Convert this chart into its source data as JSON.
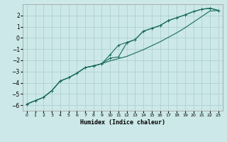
{
  "xlabel": "Humidex (Indice chaleur)",
  "background_color": "#cce8e8",
  "grid_color": "#aacccc",
  "line_color": "#1a6b5e",
  "x_data": [
    0,
    1,
    2,
    3,
    4,
    5,
    6,
    7,
    8,
    9,
    10,
    11,
    12,
    13,
    14,
    15,
    16,
    17,
    18,
    19,
    20,
    21,
    22,
    23
  ],
  "line1_y": [
    -5.9,
    -5.6,
    -5.3,
    -4.7,
    -3.85,
    -3.55,
    -3.15,
    -2.65,
    -2.5,
    -2.3,
    -1.8,
    -1.7,
    -0.45,
    -0.15,
    0.6,
    0.85,
    1.1,
    1.55,
    1.8,
    2.05,
    2.35,
    2.55,
    2.65,
    2.45
  ],
  "line2_y": [
    -5.9,
    -5.6,
    -5.3,
    -4.7,
    -3.85,
    -3.55,
    -3.15,
    -2.65,
    -2.5,
    -2.3,
    -2.05,
    -1.85,
    -1.65,
    -1.35,
    -1.05,
    -0.7,
    -0.35,
    0.05,
    0.45,
    0.9,
    1.4,
    1.9,
    2.4,
    2.45
  ],
  "line3_y": [
    -5.9,
    -5.6,
    -5.3,
    -4.7,
    -3.85,
    -3.55,
    -3.15,
    -2.65,
    -2.5,
    -2.3,
    -1.5,
    -0.65,
    -0.4,
    -0.15,
    0.6,
    0.85,
    1.1,
    1.55,
    1.8,
    2.05,
    2.35,
    2.55,
    2.65,
    2.45
  ],
  "ylim": [
    -6.5,
    3.0
  ],
  "xlim": [
    -0.5,
    23.5
  ],
  "yticks": [
    -6,
    -5,
    -4,
    -3,
    -2,
    -1,
    0,
    1,
    2
  ],
  "xticks": [
    0,
    1,
    2,
    3,
    4,
    5,
    6,
    7,
    8,
    9,
    10,
    11,
    12,
    13,
    14,
    15,
    16,
    17,
    18,
    19,
    20,
    21,
    22,
    23
  ]
}
